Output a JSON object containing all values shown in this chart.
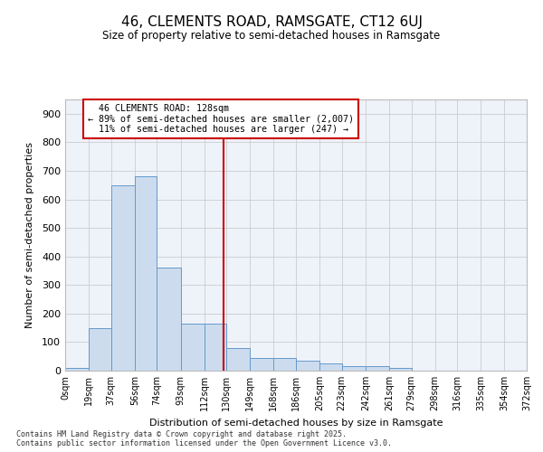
{
  "title": "46, CLEMENTS ROAD, RAMSGATE, CT12 6UJ",
  "subtitle": "Size of property relative to semi-detached houses in Ramsgate",
  "xlabel": "Distribution of semi-detached houses by size in Ramsgate",
  "ylabel": "Number of semi-detached properties",
  "property_size": 128,
  "smaller_pct": 89,
  "smaller_count": 2007,
  "larger_pct": 11,
  "larger_count": 247,
  "bins": [
    0,
    19,
    37,
    56,
    74,
    93,
    112,
    130,
    149,
    168,
    186,
    205,
    223,
    242,
    261,
    279,
    298,
    316,
    335,
    354,
    372
  ],
  "bin_labels": [
    "0sqm",
    "19sqm",
    "37sqm",
    "56sqm",
    "74sqm",
    "93sqm",
    "112sqm",
    "130sqm",
    "149sqm",
    "168sqm",
    "186sqm",
    "205sqm",
    "223sqm",
    "242sqm",
    "261sqm",
    "279sqm",
    "298sqm",
    "316sqm",
    "335sqm",
    "354sqm",
    "372sqm"
  ],
  "counts": [
    10,
    150,
    650,
    680,
    360,
    165,
    165,
    80,
    45,
    45,
    35,
    25,
    15,
    15,
    10,
    0,
    0,
    0,
    0,
    0
  ],
  "bar_color": "#ccdcee",
  "bar_edge_color": "#6699cc",
  "vline_color": "#cc0000",
  "grid_color": "#cccccc",
  "background_color": "#eef2f9",
  "annotation_box_color": "#cc0000",
  "ylim": [
    0,
    950
  ],
  "yticks": [
    0,
    100,
    200,
    300,
    400,
    500,
    600,
    700,
    800,
    900
  ],
  "footer_line1": "Contains HM Land Registry data © Crown copyright and database right 2025.",
  "footer_line2": "Contains public sector information licensed under the Open Government Licence v3.0."
}
